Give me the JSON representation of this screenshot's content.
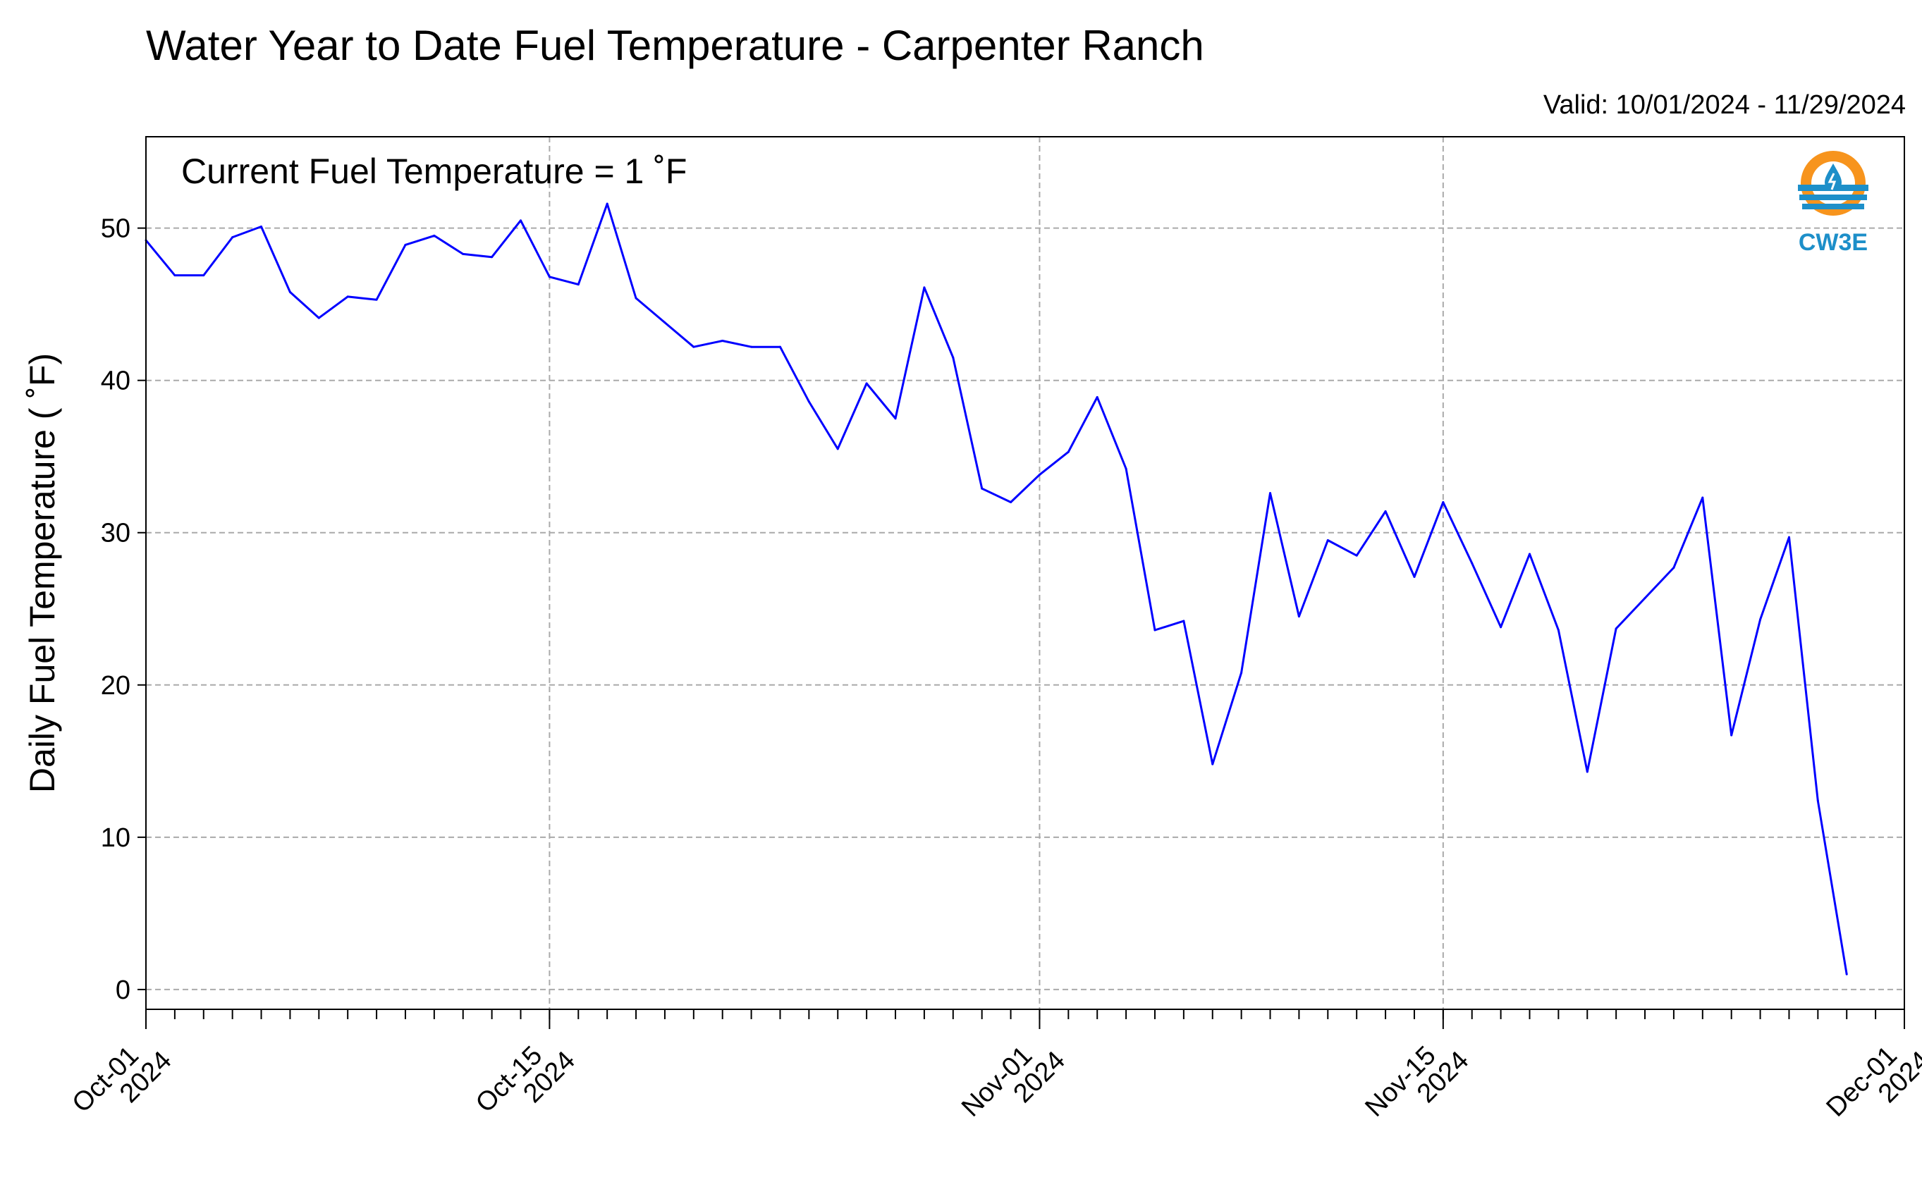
{
  "header": {
    "title": "Water Year to Date Fuel Temperature - Carpenter Ranch",
    "valid": "Valid: 10/01/2024 - 11/29/2024"
  },
  "annotation": "Current Fuel Temperature = 1  ˚F",
  "logo": {
    "text": "CW3E",
    "icon": "cw3e-logo-icon",
    "colors": [
      "#f7941d",
      "#1d8fc9"
    ]
  },
  "chart_data": {
    "type": "line",
    "title": "Water Year to Date Fuel Temperature - Carpenter Ranch",
    "ylabel": "Daily Fuel Temperature ( ˚F)",
    "xlabel": "",
    "xlim": [
      "2024-10-01",
      "2024-12-01"
    ],
    "ylim": [
      -1.3,
      56
    ],
    "grid": true,
    "line_color": "#0000ff",
    "y_ticks": [
      0,
      10,
      20,
      30,
      40,
      50
    ],
    "x_ticks": [
      {
        "date": "2024-10-01",
        "line1": "Oct-01",
        "line2": "2024"
      },
      {
        "date": "2024-10-15",
        "line1": "Oct-15",
        "line2": "2024"
      },
      {
        "date": "2024-11-01",
        "line1": "Nov-01",
        "line2": "2024"
      },
      {
        "date": "2024-11-15",
        "line1": "Nov-15",
        "line2": "2024"
      },
      {
        "date": "2024-12-01",
        "line1": "Dec-01",
        "line2": "2024"
      }
    ],
    "series": [
      {
        "x": [
          "2024-10-01",
          "2024-10-02",
          "2024-10-03",
          "2024-10-04",
          "2024-10-05",
          "2024-10-06",
          "2024-10-07",
          "2024-10-08",
          "2024-10-09",
          "2024-10-10",
          "2024-10-11",
          "2024-10-12",
          "2024-10-13",
          "2024-10-14",
          "2024-10-15",
          "2024-10-16",
          "2024-10-17",
          "2024-10-18",
          "2024-10-19",
          "2024-10-20",
          "2024-10-21",
          "2024-10-22",
          "2024-10-23",
          "2024-10-24",
          "2024-10-25",
          "2024-10-26",
          "2024-10-27",
          "2024-10-28",
          "2024-10-29",
          "2024-10-30",
          "2024-10-31",
          "2024-11-01",
          "2024-11-02",
          "2024-11-03",
          "2024-11-04",
          "2024-11-05",
          "2024-11-06",
          "2024-11-07",
          "2024-11-08",
          "2024-11-09",
          "2024-11-10",
          "2024-11-11",
          "2024-11-12",
          "2024-11-13",
          "2024-11-14",
          "2024-11-15",
          "2024-11-16",
          "2024-11-17",
          "2024-11-18",
          "2024-11-19",
          "2024-11-20",
          "2024-11-21",
          "2024-11-22",
          "2024-11-23",
          "2024-11-24",
          "2024-11-25",
          "2024-11-26",
          "2024-11-27",
          "2024-11-28",
          "2024-11-29"
        ],
        "y": [
          49.2,
          46.9,
          46.9,
          49.4,
          50.1,
          45.8,
          44.1,
          45.5,
          45.3,
          48.9,
          49.5,
          48.3,
          48.1,
          50.5,
          46.8,
          46.3,
          51.6,
          45.4,
          43.8,
          42.2,
          42.6,
          42.2,
          42.2,
          38.6,
          35.5,
          39.8,
          37.5,
          46.1,
          41.5,
          32.9,
          32.0,
          33.8,
          35.3,
          38.9,
          34.2,
          23.6,
          24.2,
          14.8,
          20.8,
          32.6,
          24.5,
          29.5,
          28.5,
          31.4,
          27.1,
          32.0,
          28.0,
          23.8,
          28.6,
          23.6,
          14.3,
          23.7,
          25.7,
          27.7,
          32.3,
          16.7,
          24.3,
          29.7,
          12.4,
          1.0
        ]
      }
    ]
  }
}
